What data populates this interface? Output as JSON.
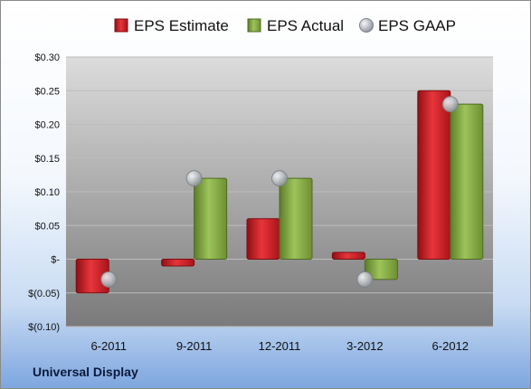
{
  "footer": {
    "company": "Universal Display"
  },
  "colors": {
    "estimate": "#d11f26",
    "actual": "#8ab14a",
    "gaap": "#b8bcc2"
  },
  "chart_data": {
    "type": "bar",
    "categories": [
      "6-2011",
      "9-2011",
      "12-2011",
      "3-2012",
      "6-2012"
    ],
    "series": [
      {
        "name": "EPS Estimate",
        "kind": "bar",
        "values": [
          -0.05,
          -0.01,
          0.06,
          0.01,
          0.25
        ]
      },
      {
        "name": "EPS Actual",
        "kind": "bar",
        "values": [
          null,
          0.12,
          0.12,
          -0.03,
          0.23
        ]
      },
      {
        "name": "EPS GAAP",
        "kind": "marker",
        "values": [
          -0.03,
          0.12,
          0.12,
          -0.03,
          0.23
        ]
      }
    ],
    "ylim": [
      -0.1,
      0.3
    ],
    "yticks": [
      0.3,
      0.25,
      0.2,
      0.15,
      0.1,
      0.05,
      0,
      -0.05,
      -0.1
    ],
    "ytick_labels": [
      "$0.30",
      "$0.25",
      "$0.20",
      "$0.15",
      "$0.10",
      "$0.05",
      "$-",
      "$(0.05)",
      "$(0.10)"
    ],
    "grid": true,
    "legend": "top"
  }
}
